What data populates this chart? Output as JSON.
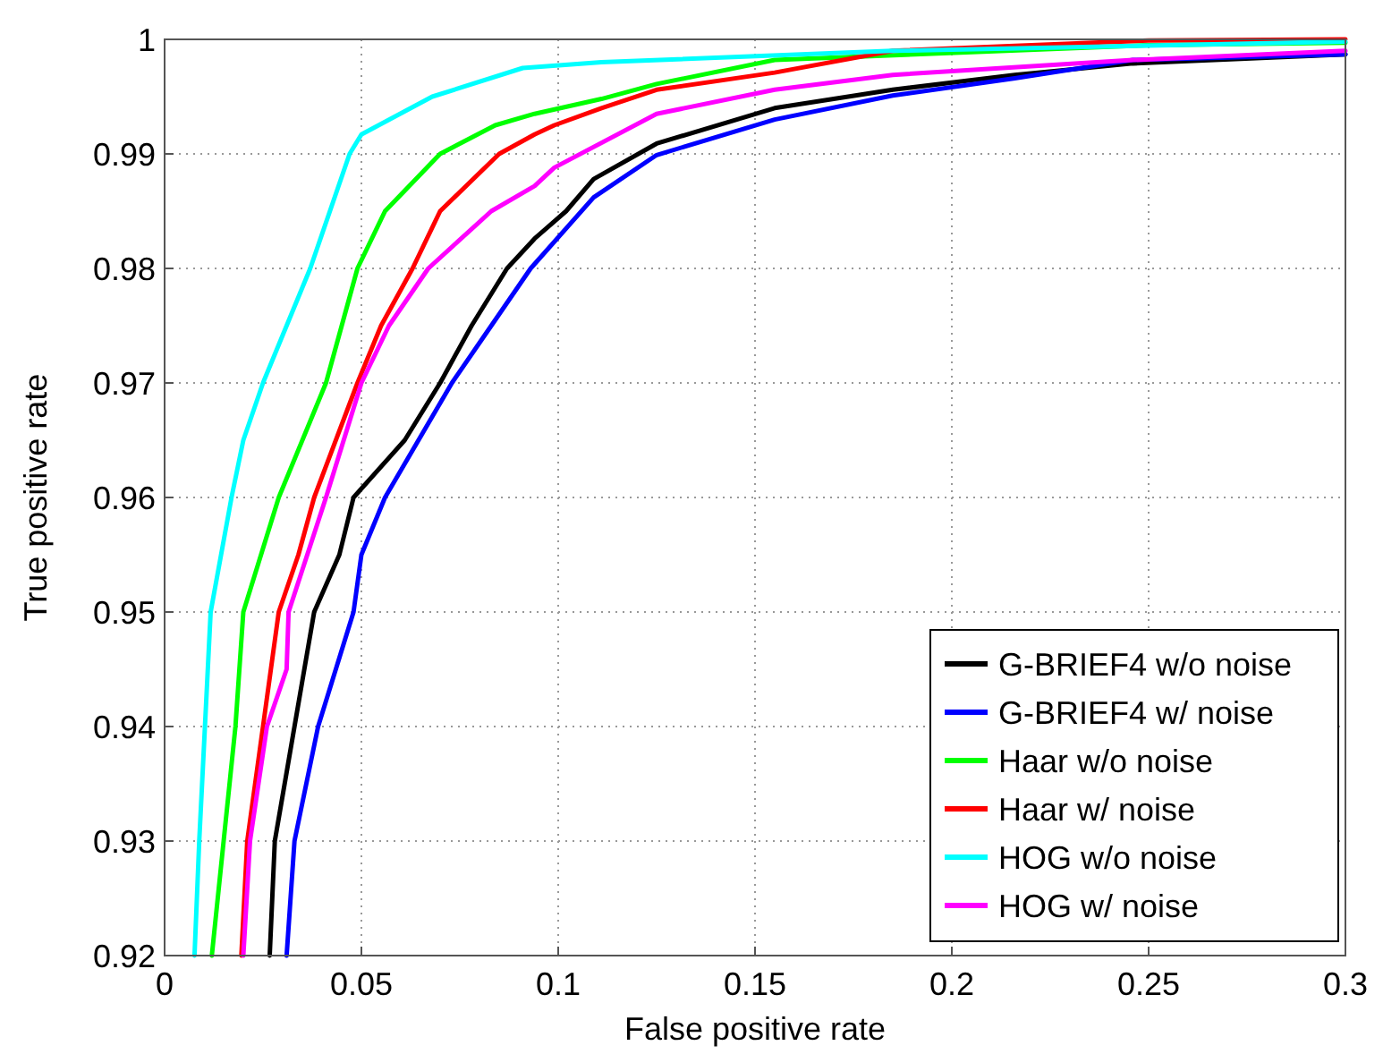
{
  "chart_data": {
    "type": "line",
    "xlabel": "False positive rate",
    "ylabel": "True positive rate",
    "xlim": [
      0,
      0.3
    ],
    "ylim": [
      0.92,
      1
    ],
    "xticks": [
      0,
      0.05,
      0.1,
      0.15,
      0.2,
      0.25,
      0.3
    ],
    "yticks": [
      0.92,
      0.93,
      0.94,
      0.95,
      0.96,
      0.97,
      0.98,
      0.99,
      1
    ],
    "grid": true,
    "legend": "bottom right",
    "marker": "none",
    "line_style": "solid",
    "series": [
      {
        "name": "G-BRIEF4 w/o noise",
        "color": "#000000",
        "x": [
          0.0267,
          0.028,
          0.033,
          0.038,
          0.0444,
          0.048,
          0.061,
          0.07,
          0.078,
          0.087,
          0.094,
          0.102,
          0.109,
          0.125,
          0.155,
          0.185,
          0.216,
          0.246,
          0.3
        ],
        "values": [
          0.92,
          0.93,
          0.94,
          0.95,
          0.955,
          0.96,
          0.965,
          0.97,
          0.975,
          0.98,
          0.9826,
          0.985,
          0.9878,
          0.9909,
          0.994,
          0.9956,
          0.9969,
          0.9979,
          0.9987
        ]
      },
      {
        "name": "G-BRIEF4 w/ noise",
        "color": "#0000ff",
        "x": [
          0.031,
          0.033,
          0.039,
          0.048,
          0.05,
          0.056,
          0.073,
          0.083,
          0.093,
          0.109,
          0.125,
          0.155,
          0.185,
          0.216,
          0.246,
          0.3
        ],
        "values": [
          0.92,
          0.93,
          0.94,
          0.95,
          0.955,
          0.96,
          0.97,
          0.975,
          0.98,
          0.9862,
          0.9899,
          0.993,
          0.9951,
          0.9966,
          0.9982,
          0.9987
        ]
      },
      {
        "name": "Haar w/o noise",
        "color": "#00ff00",
        "x": [
          0.012,
          0.015,
          0.018,
          0.02,
          0.029,
          0.041,
          0.049,
          0.056,
          0.07,
          0.084,
          0.094,
          0.111,
          0.125,
          0.155,
          0.25,
          0.3
        ],
        "values": [
          0.92,
          0.93,
          0.94,
          0.95,
          0.96,
          0.97,
          0.98,
          0.985,
          0.99,
          0.9925,
          0.9935,
          0.9948,
          0.9961,
          0.9982,
          0.9995,
          0.9997
        ]
      },
      {
        "name": "Haar w/ noise",
        "color": "#ff0000",
        "x": [
          0.0195,
          0.021,
          0.025,
          0.029,
          0.034,
          0.038,
          0.049,
          0.055,
          0.063,
          0.07,
          0.085,
          0.094,
          0.099,
          0.111,
          0.125,
          0.155,
          0.185,
          0.25,
          0.3
        ],
        "values": [
          0.92,
          0.93,
          0.94,
          0.95,
          0.955,
          0.96,
          0.97,
          0.975,
          0.98,
          0.985,
          0.99,
          0.9917,
          0.9925,
          0.994,
          0.9956,
          0.9971,
          0.999,
          0.9999,
          1
        ]
      },
      {
        "name": "HOG w/o noise",
        "color": "#00ffff",
        "x": [
          0.0076,
          0.0088,
          0.0117,
          0.017,
          0.02,
          0.025,
          0.037,
          0.047,
          0.05,
          0.068,
          0.091,
          0.111,
          0.185,
          0.3
        ],
        "values": [
          0.92,
          0.93,
          0.95,
          0.96,
          0.965,
          0.97,
          0.98,
          0.99,
          0.9917,
          0.995,
          0.9975,
          0.998,
          0.999,
          0.9998
        ]
      },
      {
        "name": "HOG w/ noise",
        "color": "#ff00ff",
        "x": [
          0.02,
          0.0217,
          0.026,
          0.031,
          0.0315,
          0.041,
          0.05,
          0.057,
          0.067,
          0.083,
          0.094,
          0.099,
          0.125,
          0.155,
          0.185,
          0.246,
          0.3
        ],
        "values": [
          0.92,
          0.93,
          0.94,
          0.945,
          0.95,
          0.96,
          0.97,
          0.975,
          0.98,
          0.985,
          0.9872,
          0.9888,
          0.9935,
          0.9956,
          0.9969,
          0.9982,
          0.999
        ]
      }
    ]
  }
}
